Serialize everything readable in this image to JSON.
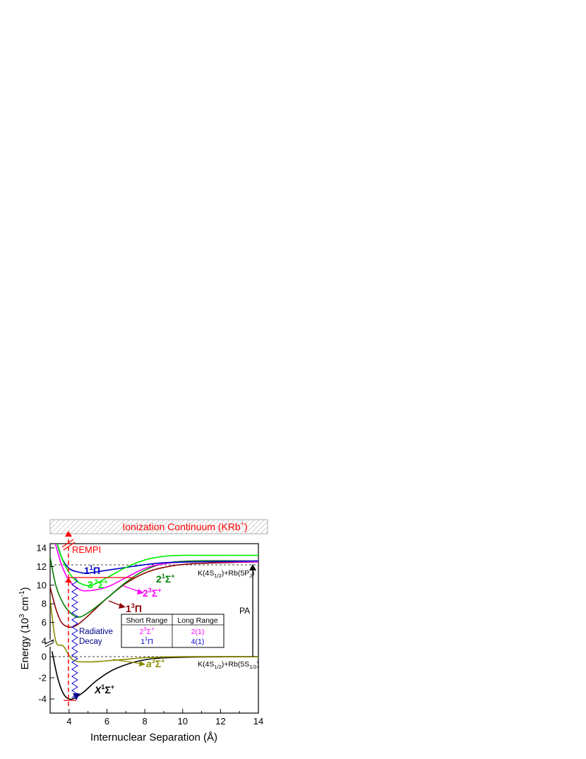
{
  "header": {
    "continuum_label": "Ionization Continuum (KRb",
    "continuum_sup": "+",
    "continuum_close": ")"
  },
  "colors": {
    "X1Sigma": "#000000",
    "a3Sigma": "#8a8a00",
    "b3Pi": "#8b0000",
    "A1Sigma": "#008000",
    "c3Sigma": "#ff00ff",
    "B1Pi": "#0000cc",
    "c3Sigma3": "#00ee00",
    "accent_red": "#ff0000",
    "decay": "#00008b"
  },
  "chart_data": {
    "type": "line",
    "xlabel": "Internuclear Separation (Å)",
    "ylabel": "Energy (10",
    "ylabel_sup": "3",
    "ylabel_unit": " cm",
    "ylabel_unit_sup": "-1",
    "ylabel_close": ")",
    "xlim": [
      3,
      14
    ],
    "xticks": [
      "4",
      "6",
      "8",
      "10",
      "12",
      "14"
    ],
    "yticks_upper": [
      "4",
      "6",
      "8",
      "10",
      "12",
      "14"
    ],
    "yticks_lower": [
      "-4",
      "-2",
      "0"
    ],
    "axis_break": true,
    "series": [
      {
        "key": "X1Sigma",
        "x": [
          3.1,
          3.4,
          3.7,
          4.0,
          4.3,
          4.8,
          5.5,
          6.5,
          8.0,
          10.0,
          14.0
        ],
        "y": [
          0.5,
          -2.0,
          -3.5,
          -4.0,
          -3.9,
          -3.3,
          -2.2,
          -1.1,
          -0.3,
          -0.05,
          0.0
        ]
      },
      {
        "key": "a3Sigma",
        "x": [
          3.0,
          3.3,
          3.7,
          4.2,
          5.0,
          6.0,
          7.0,
          8.0,
          10.0,
          14.0
        ],
        "y": [
          8.5,
          4.0,
          1.0,
          -0.3,
          -0.5,
          -0.4,
          -0.25,
          -0.1,
          0.0,
          0.0
        ]
      },
      {
        "key": "b3Pi",
        "x": [
          3.0,
          3.3,
          3.6,
          4.0,
          4.4,
          5.0,
          6.0,
          7.0,
          8.0,
          9.0,
          10.5,
          14.0
        ],
        "y": [
          9.8,
          7.5,
          6.0,
          5.5,
          5.7,
          6.7,
          8.6,
          10.2,
          11.3,
          11.9,
          12.3,
          12.5
        ]
      },
      {
        "key": "A1Sigma",
        "x": [
          3.0,
          3.3,
          3.7,
          4.2,
          4.6,
          5.2,
          6.0,
          7.0,
          8.0,
          9.0,
          10.5,
          14.0
        ],
        "y": [
          13.0,
          10.0,
          8.0,
          6.8,
          6.6,
          7.3,
          8.6,
          10.3,
          11.6,
          12.3,
          12.6,
          12.6
        ]
      },
      {
        "key": "c3Sigma",
        "x": [
          3.2,
          3.6,
          4.0,
          4.5,
          5.0,
          6.0,
          7.0,
          8.0,
          9.0,
          10.5,
          14.0
        ],
        "y": [
          15.0,
          12.2,
          10.5,
          9.6,
          9.4,
          9.8,
          10.8,
          11.8,
          12.3,
          12.5,
          12.5
        ]
      },
      {
        "key": "B1Pi",
        "x": [
          3.3,
          3.6,
          4.0,
          4.5,
          5.0,
          6.0,
          7.0,
          8.0,
          9.0,
          10.5,
          14.0
        ],
        "y": [
          15.0,
          13.0,
          11.8,
          11.4,
          11.3,
          11.6,
          11.9,
          12.2,
          12.4,
          12.5,
          12.6
        ]
      },
      {
        "key": "c3Sigma3",
        "x": [
          3.3,
          3.7,
          4.2,
          4.7,
          5.2,
          6.0,
          7.0,
          8.0,
          9.0,
          10.0,
          11.0,
          14.0
        ],
        "y": [
          15.0,
          12.5,
          10.8,
          10.1,
          10.0,
          10.8,
          11.9,
          12.7,
          13.1,
          13.2,
          13.2,
          13.2
        ]
      }
    ],
    "labels": {
      "X1Sigma": "X",
      "X1Sigma_sup": "1",
      "X1Sigma_sym": "Σ",
      "X1Sigma_sym_sup": "+",
      "a3Sigma": "a",
      "a3Sigma_sup": "3",
      "a3Sigma_sym": "Σ",
      "a3Sigma_sym_sup": "+",
      "b3Pi": "1",
      "b3Pi_sup": "3",
      "b3Pi_sym": "Π",
      "A1Sigma": "2",
      "A1Sigma_sup": "1",
      "A1Sigma_sym": "Σ",
      "A1Sigma_sym_sup": "+",
      "c3Sigma": "2",
      "c3Sigma_sup": "3",
      "c3Sigma_sym": "Σ",
      "c3Sigma_sym_sup": "+",
      "B1Pi": "1",
      "B1Pi_sup": "1",
      "B1Pi_sym": "Π",
      "c3Sigma3": "3",
      "c3Sigma3_sup": "3",
      "c3Sigma3_sym": "Σ",
      "c3Sigma3_sym_sup": "+"
    },
    "asymptote_upper": {
      "pre": "K(4S",
      "sub1": "1/2",
      "mid": ")+Rb(5P",
      "sub2": "J",
      "post": ")"
    },
    "asymptote_lower": {
      "pre": "K(4S",
      "sub1": "1/2",
      "mid": ")+Rb(5S",
      "sub2": "1/2",
      "post": ")"
    },
    "annotations": {
      "rempi": "REMPI",
      "pa": "PA",
      "decay_1": "Radiative",
      "decay_2": "Decay"
    },
    "table": {
      "headers": [
        "Short Range",
        "Long Range"
      ],
      "rows": [
        {
          "short": "2",
          "short_sup": "3",
          "short_sym": "Σ",
          "short_sym_sup": "+",
          "long": "2(1)",
          "color": "#ff00ff"
        },
        {
          "short": "1",
          "short_sup": "1",
          "short_sym": "Π",
          "short_sym_sup": "",
          "long": "4(1)",
          "color": "#0000cc"
        }
      ]
    }
  }
}
